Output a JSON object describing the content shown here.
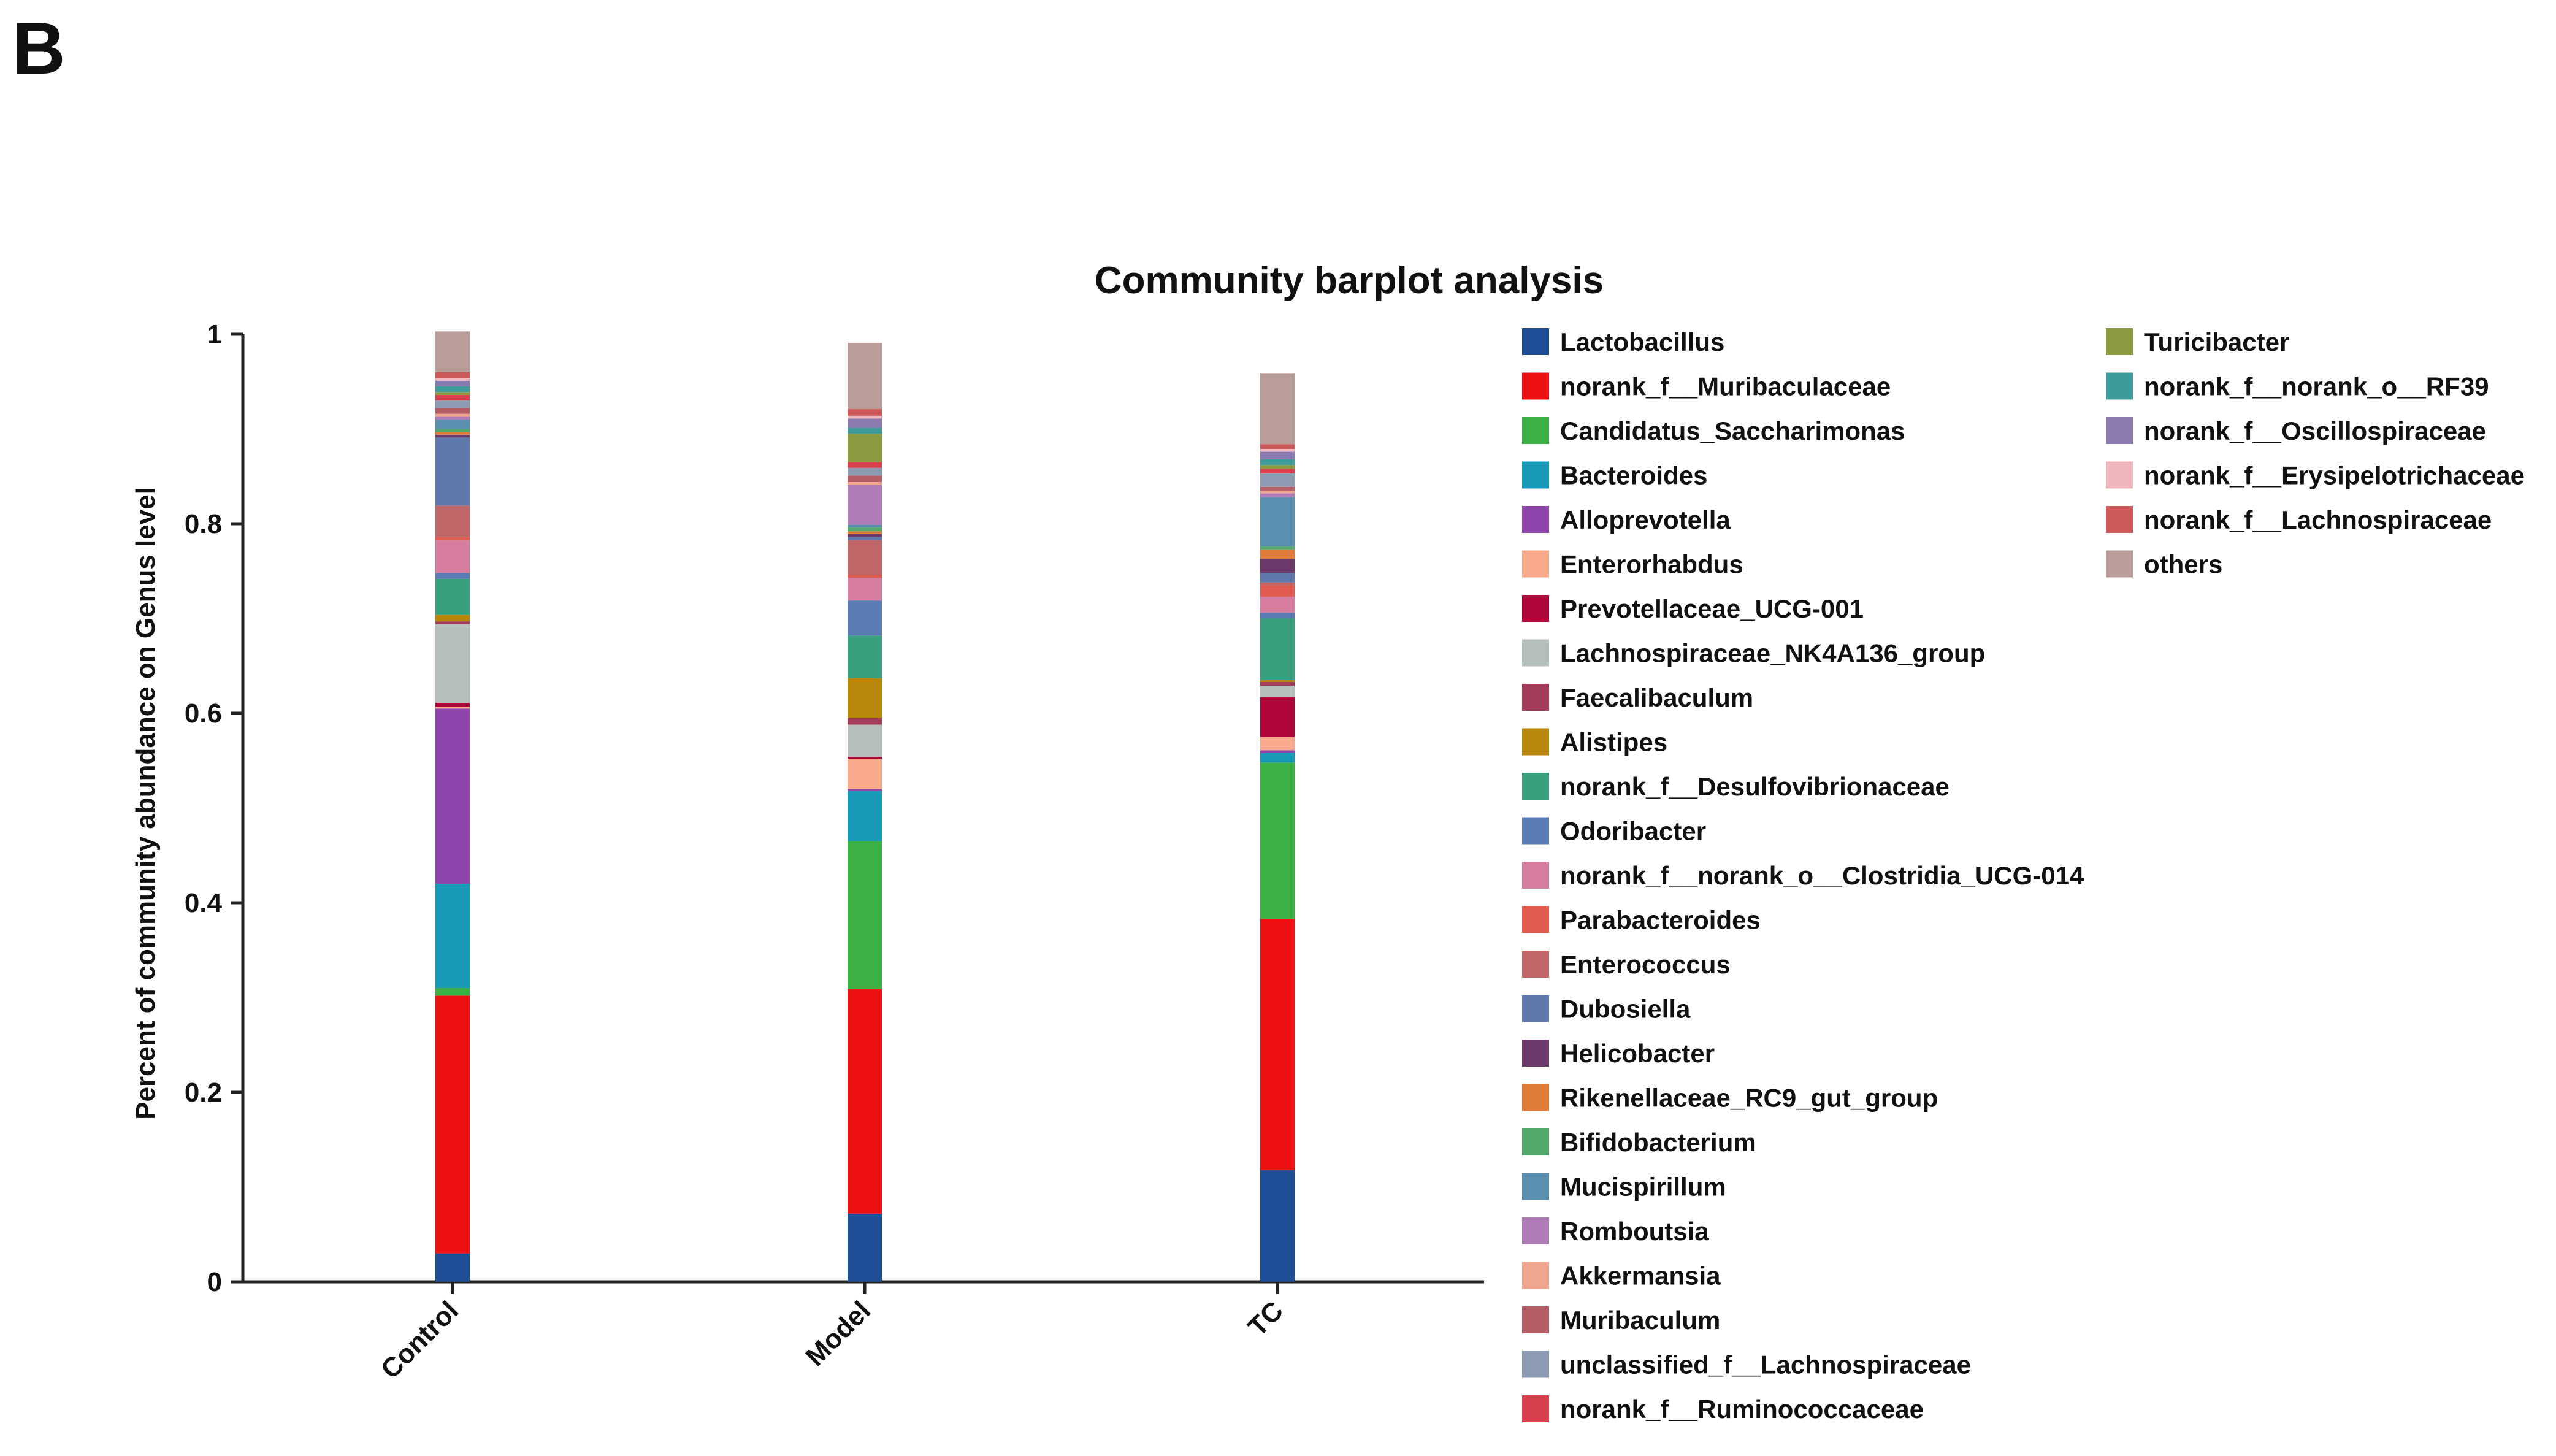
{
  "panel_label": "B",
  "chart_data": {
    "type": "bar",
    "stacked": true,
    "title": "Community barplot analysis",
    "xlabel": "",
    "ylabel": "Percent of community abundance on Genus level",
    "ylim": [
      0,
      1
    ],
    "yticks": [
      "0",
      "0.2",
      "0.4",
      "0.6",
      "0.8",
      "1"
    ],
    "ytick_values": [
      0,
      0.2,
      0.4,
      0.6,
      0.8,
      1
    ],
    "categories": [
      "Control",
      "Model",
      "TC"
    ],
    "grid": false,
    "legend_position": "right",
    "series": [
      {
        "name": "Lactobacillus",
        "color": "#1f4e96",
        "values": [
          0.03,
          0.072,
          0.118
        ]
      },
      {
        "name": "norank_f__Muribaculaceae",
        "color": "#ee1111",
        "values": [
          0.272,
          0.237,
          0.265
        ]
      },
      {
        "name": "Candidatus_Saccharimonas",
        "color": "#3cb043",
        "values": [
          0.008,
          0.156,
          0.165
        ]
      },
      {
        "name": "Bacteroides",
        "color": "#1899b8",
        "values": [
          0.11,
          0.053,
          0.01
        ]
      },
      {
        "name": "Alloprevotella",
        "color": "#8e44ad",
        "values": [
          0.185,
          0.002,
          0.003
        ]
      },
      {
        "name": "Enterorhabdus",
        "color": "#f9a98b",
        "values": [
          0.002,
          0.032,
          0.014
        ]
      },
      {
        "name": "Prevotellaceae_UCG-001",
        "color": "#b0073a",
        "values": [
          0.004,
          0.002,
          0.042
        ]
      },
      {
        "name": "Lachnospiraceae_NK4A136_group",
        "color": "#b5bfbc",
        "values": [
          0.083,
          0.034,
          0.012
        ]
      },
      {
        "name": "Faecalibaculum",
        "color": "#a33c58",
        "values": [
          0.003,
          0.007,
          0.004
        ]
      },
      {
        "name": "Alistipes",
        "color": "#b8860b",
        "values": [
          0.007,
          0.042,
          0.002
        ]
      },
      {
        "name": "norank_f__Desulfovibrionaceae",
        "color": "#3a9f7f",
        "values": [
          0.038,
          0.045,
          0.065
        ]
      },
      {
        "name": "Odoribacter",
        "color": "#5b7bb5",
        "values": [
          0.006,
          0.037,
          0.006
        ]
      },
      {
        "name": "norank_f__norank_o__Clostridia_UCG-014",
        "color": "#d77ea0",
        "values": [
          0.035,
          0.024,
          0.017
        ]
      },
      {
        "name": "Parabacteroides",
        "color": "#e05c50",
        "values": [
          0.003,
          0.003,
          0.012
        ]
      },
      {
        "name": "Enterococcus",
        "color": "#c06666",
        "values": [
          0.033,
          0.037,
          0.003
        ]
      },
      {
        "name": "Dubosiella",
        "color": "#5f79ad",
        "values": [
          0.072,
          0.003,
          0.01
        ]
      },
      {
        "name": "Helicobacter",
        "color": "#6b3a6a",
        "values": [
          0.003,
          0.003,
          0.015
        ]
      },
      {
        "name": "Rikenellaceae_RC9_gut_group",
        "color": "#e07b39",
        "values": [
          0.003,
          0.003,
          0.01
        ]
      },
      {
        "name": "Bifidobacterium",
        "color": "#52a86b",
        "values": [
          0.003,
          0.004,
          0.003
        ]
      },
      {
        "name": "Mucispirillum",
        "color": "#5b8fb0",
        "values": [
          0.01,
          0.003,
          0.052
        ]
      },
      {
        "name": "Romboutsia",
        "color": "#b07cb7",
        "values": [
          0.003,
          0.042,
          0.004
        ]
      },
      {
        "name": "Akkermansia",
        "color": "#f0a58e",
        "values": [
          0.003,
          0.003,
          0.003
        ]
      },
      {
        "name": "Muribaculum",
        "color": "#b55d64",
        "values": [
          0.006,
          0.007,
          0.004
        ]
      },
      {
        "name": "unclassified_f__Lachnospiraceae",
        "color": "#8d9cb3",
        "values": [
          0.008,
          0.008,
          0.014
        ]
      },
      {
        "name": "norank_f__Ruminococcaceae",
        "color": "#d9404d",
        "values": [
          0.006,
          0.006,
          0.005
        ]
      },
      {
        "name": "Turicibacter",
        "color": "#8c9a40",
        "values": [
          0.003,
          0.03,
          0.004
        ]
      },
      {
        "name": "norank_f__norank_o__RF39",
        "color": "#3f9a9a",
        "values": [
          0.006,
          0.006,
          0.006
        ]
      },
      {
        "name": "norank_f__Oscillospiraceae",
        "color": "#8a7ab0",
        "values": [
          0.006,
          0.01,
          0.008
        ]
      },
      {
        "name": "norank_f__Erysipelotrichaceae",
        "color": "#f0b6bd",
        "values": [
          0.003,
          0.003,
          0.003
        ]
      },
      {
        "name": "norank_f__Lachnospiraceae",
        "color": "#cd5a5a",
        "values": [
          0.006,
          0.007,
          0.005
        ]
      },
      {
        "name": "others",
        "color": "#b99d98",
        "values": [
          0.043,
          0.07,
          0.075
        ]
      }
    ]
  }
}
